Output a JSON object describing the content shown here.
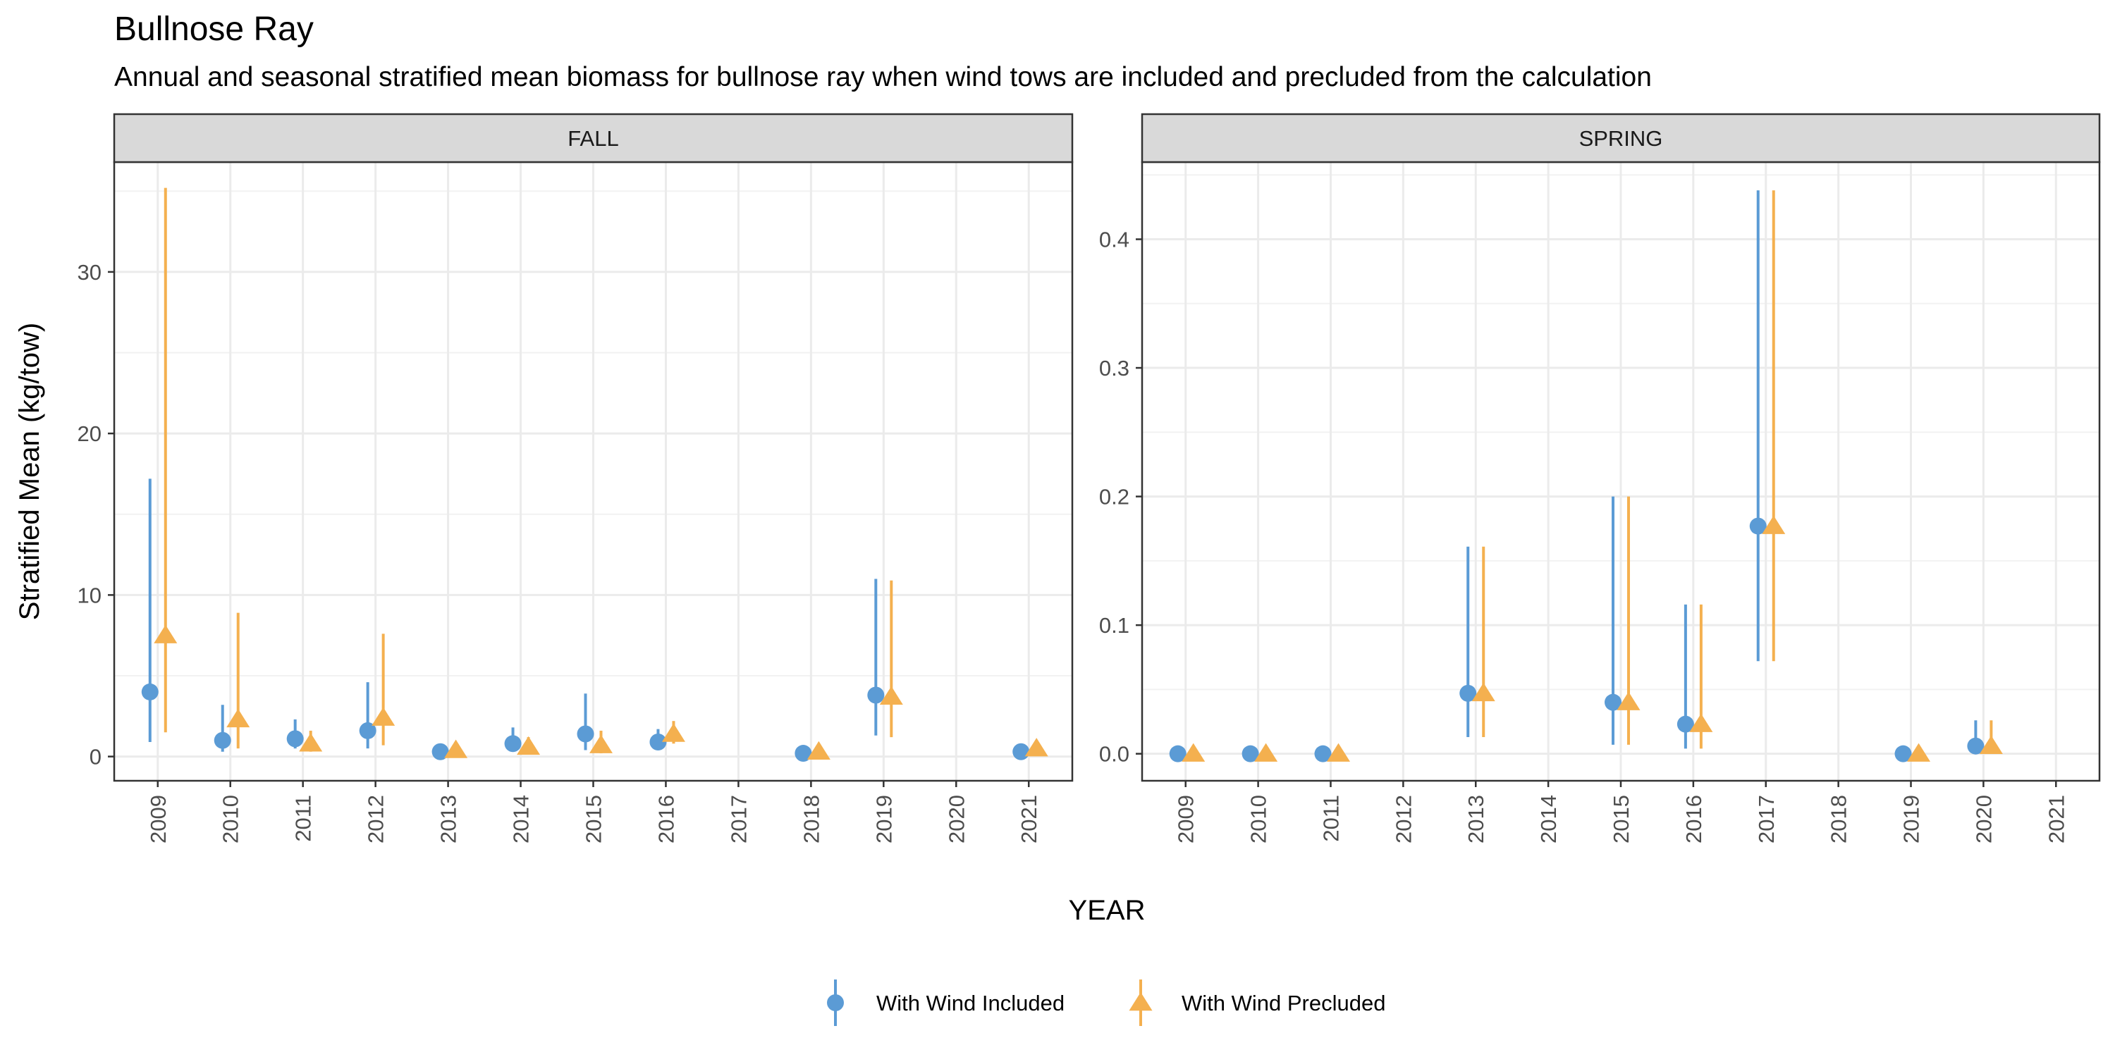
{
  "chart_data": {
    "type": "scatter",
    "title": "Bullnose Ray",
    "subtitle": "Annual and seasonal stratified mean biomass for bullnose ray when wind tows are included and precluded from the calculation",
    "xlabel": "YEAR",
    "ylabel": "Stratified Mean (kg/tow)",
    "x_categories": [
      "2009",
      "2010",
      "2011",
      "2012",
      "2013",
      "2014",
      "2015",
      "2016",
      "2017",
      "2018",
      "2019",
      "2020",
      "2021"
    ],
    "legend": {
      "position": "bottom",
      "entries": [
        {
          "label": "With Wind Included",
          "color": "#5B9BD5",
          "shape": "circle"
        },
        {
          "label": "With Wind Precluded",
          "color": "#F4B04F",
          "shape": "triangle"
        }
      ]
    },
    "grid": true,
    "panels": [
      {
        "strip": "FALL",
        "ylim": [
          -1.5,
          36.8
        ],
        "yticks": [
          0,
          10,
          20,
          30
        ],
        "ytick_labels": [
          "0",
          "10",
          "20",
          "30"
        ],
        "series": [
          {
            "name": "With Wind Included",
            "points": [
              {
                "x": "2009",
                "y": 4.0,
                "lo": 0.9,
                "hi": 17.2
              },
              {
                "x": "2010",
                "y": 1.0,
                "lo": 0.3,
                "hi": 3.2
              },
              {
                "x": "2011",
                "y": 1.1,
                "lo": 0.5,
                "hi": 2.3
              },
              {
                "x": "2012",
                "y": 1.6,
                "lo": 0.5,
                "hi": 4.6
              },
              {
                "x": "2013",
                "y": 0.3,
                "lo": 0.1,
                "hi": 0.6
              },
              {
                "x": "2014",
                "y": 0.8,
                "lo": 0.3,
                "hi": 1.8
              },
              {
                "x": "2015",
                "y": 1.4,
                "lo": 0.4,
                "hi": 3.9
              },
              {
                "x": "2016",
                "y": 0.9,
                "lo": 0.4,
                "hi": 1.7
              },
              {
                "x": "2018",
                "y": 0.2,
                "lo": 0.05,
                "hi": 0.4
              },
              {
                "x": "2019",
                "y": 3.8,
                "lo": 1.3,
                "hi": 11.0
              },
              {
                "x": "2021",
                "y": 0.3,
                "lo": 0.1,
                "hi": 0.6
              }
            ]
          },
          {
            "name": "With Wind Precluded",
            "points": [
              {
                "x": "2009",
                "y": 7.5,
                "lo": 1.5,
                "hi": 35.2
              },
              {
                "x": "2010",
                "y": 2.3,
                "lo": 0.5,
                "hi": 8.9
              },
              {
                "x": "2011",
                "y": 0.8,
                "lo": 0.3,
                "hi": 1.6
              },
              {
                "x": "2012",
                "y": 2.4,
                "lo": 0.7,
                "hi": 7.6
              },
              {
                "x": "2013",
                "y": 0.4,
                "lo": 0.1,
                "hi": 0.9
              },
              {
                "x": "2014",
                "y": 0.6,
                "lo": 0.2,
                "hi": 1.2
              },
              {
                "x": "2015",
                "y": 0.7,
                "lo": 0.2,
                "hi": 1.6
              },
              {
                "x": "2016",
                "y": 1.4,
                "lo": 0.8,
                "hi": 2.2
              },
              {
                "x": "2018",
                "y": 0.3,
                "lo": 0.1,
                "hi": 0.6
              },
              {
                "x": "2019",
                "y": 3.7,
                "lo": 1.2,
                "hi": 10.9
              },
              {
                "x": "2021",
                "y": 0.5,
                "lo": 0.2,
                "hi": 1.0
              }
            ]
          }
        ]
      },
      {
        "strip": "SPRING",
        "ylim": [
          -0.021,
          0.46
        ],
        "yticks": [
          0,
          0.1,
          0.2,
          0.3,
          0.4
        ],
        "ytick_labels": [
          "0.0",
          "0.1",
          "0.2",
          "0.3",
          "0.4"
        ],
        "series": [
          {
            "name": "With Wind Included",
            "points": [
              {
                "x": "2009",
                "y": 0.0,
                "lo": 0.0,
                "hi": 0.0
              },
              {
                "x": "2010",
                "y": 0.0,
                "lo": 0.0,
                "hi": 0.0
              },
              {
                "x": "2011",
                "y": 0.0,
                "lo": 0.0,
                "hi": 0.0
              },
              {
                "x": "2013",
                "y": 0.047,
                "lo": 0.013,
                "hi": 0.161
              },
              {
                "x": "2015",
                "y": 0.04,
                "lo": 0.007,
                "hi": 0.2
              },
              {
                "x": "2016",
                "y": 0.023,
                "lo": 0.004,
                "hi": 0.116
              },
              {
                "x": "2017",
                "y": 0.177,
                "lo": 0.072,
                "hi": 0.438
              },
              {
                "x": "2019",
                "y": 0.0,
                "lo": 0.0,
                "hi": 0.0
              },
              {
                "x": "2020",
                "y": 0.006,
                "lo": 0.0,
                "hi": 0.026
              }
            ]
          },
          {
            "name": "With Wind Precluded",
            "points": [
              {
                "x": "2009",
                "y": 0.0,
                "lo": 0.0,
                "hi": 0.0
              },
              {
                "x": "2010",
                "y": 0.0,
                "lo": 0.0,
                "hi": 0.0
              },
              {
                "x": "2011",
                "y": 0.0,
                "lo": 0.0,
                "hi": 0.0
              },
              {
                "x": "2013",
                "y": 0.047,
                "lo": 0.013,
                "hi": 0.161
              },
              {
                "x": "2015",
                "y": 0.04,
                "lo": 0.007,
                "hi": 0.2
              },
              {
                "x": "2016",
                "y": 0.023,
                "lo": 0.004,
                "hi": 0.116
              },
              {
                "x": "2017",
                "y": 0.177,
                "lo": 0.072,
                "hi": 0.438
              },
              {
                "x": "2019",
                "y": 0.0,
                "lo": 0.0,
                "hi": 0.0
              },
              {
                "x": "2020",
                "y": 0.006,
                "lo": 0.0,
                "hi": 0.026
              }
            ]
          }
        ]
      }
    ]
  }
}
